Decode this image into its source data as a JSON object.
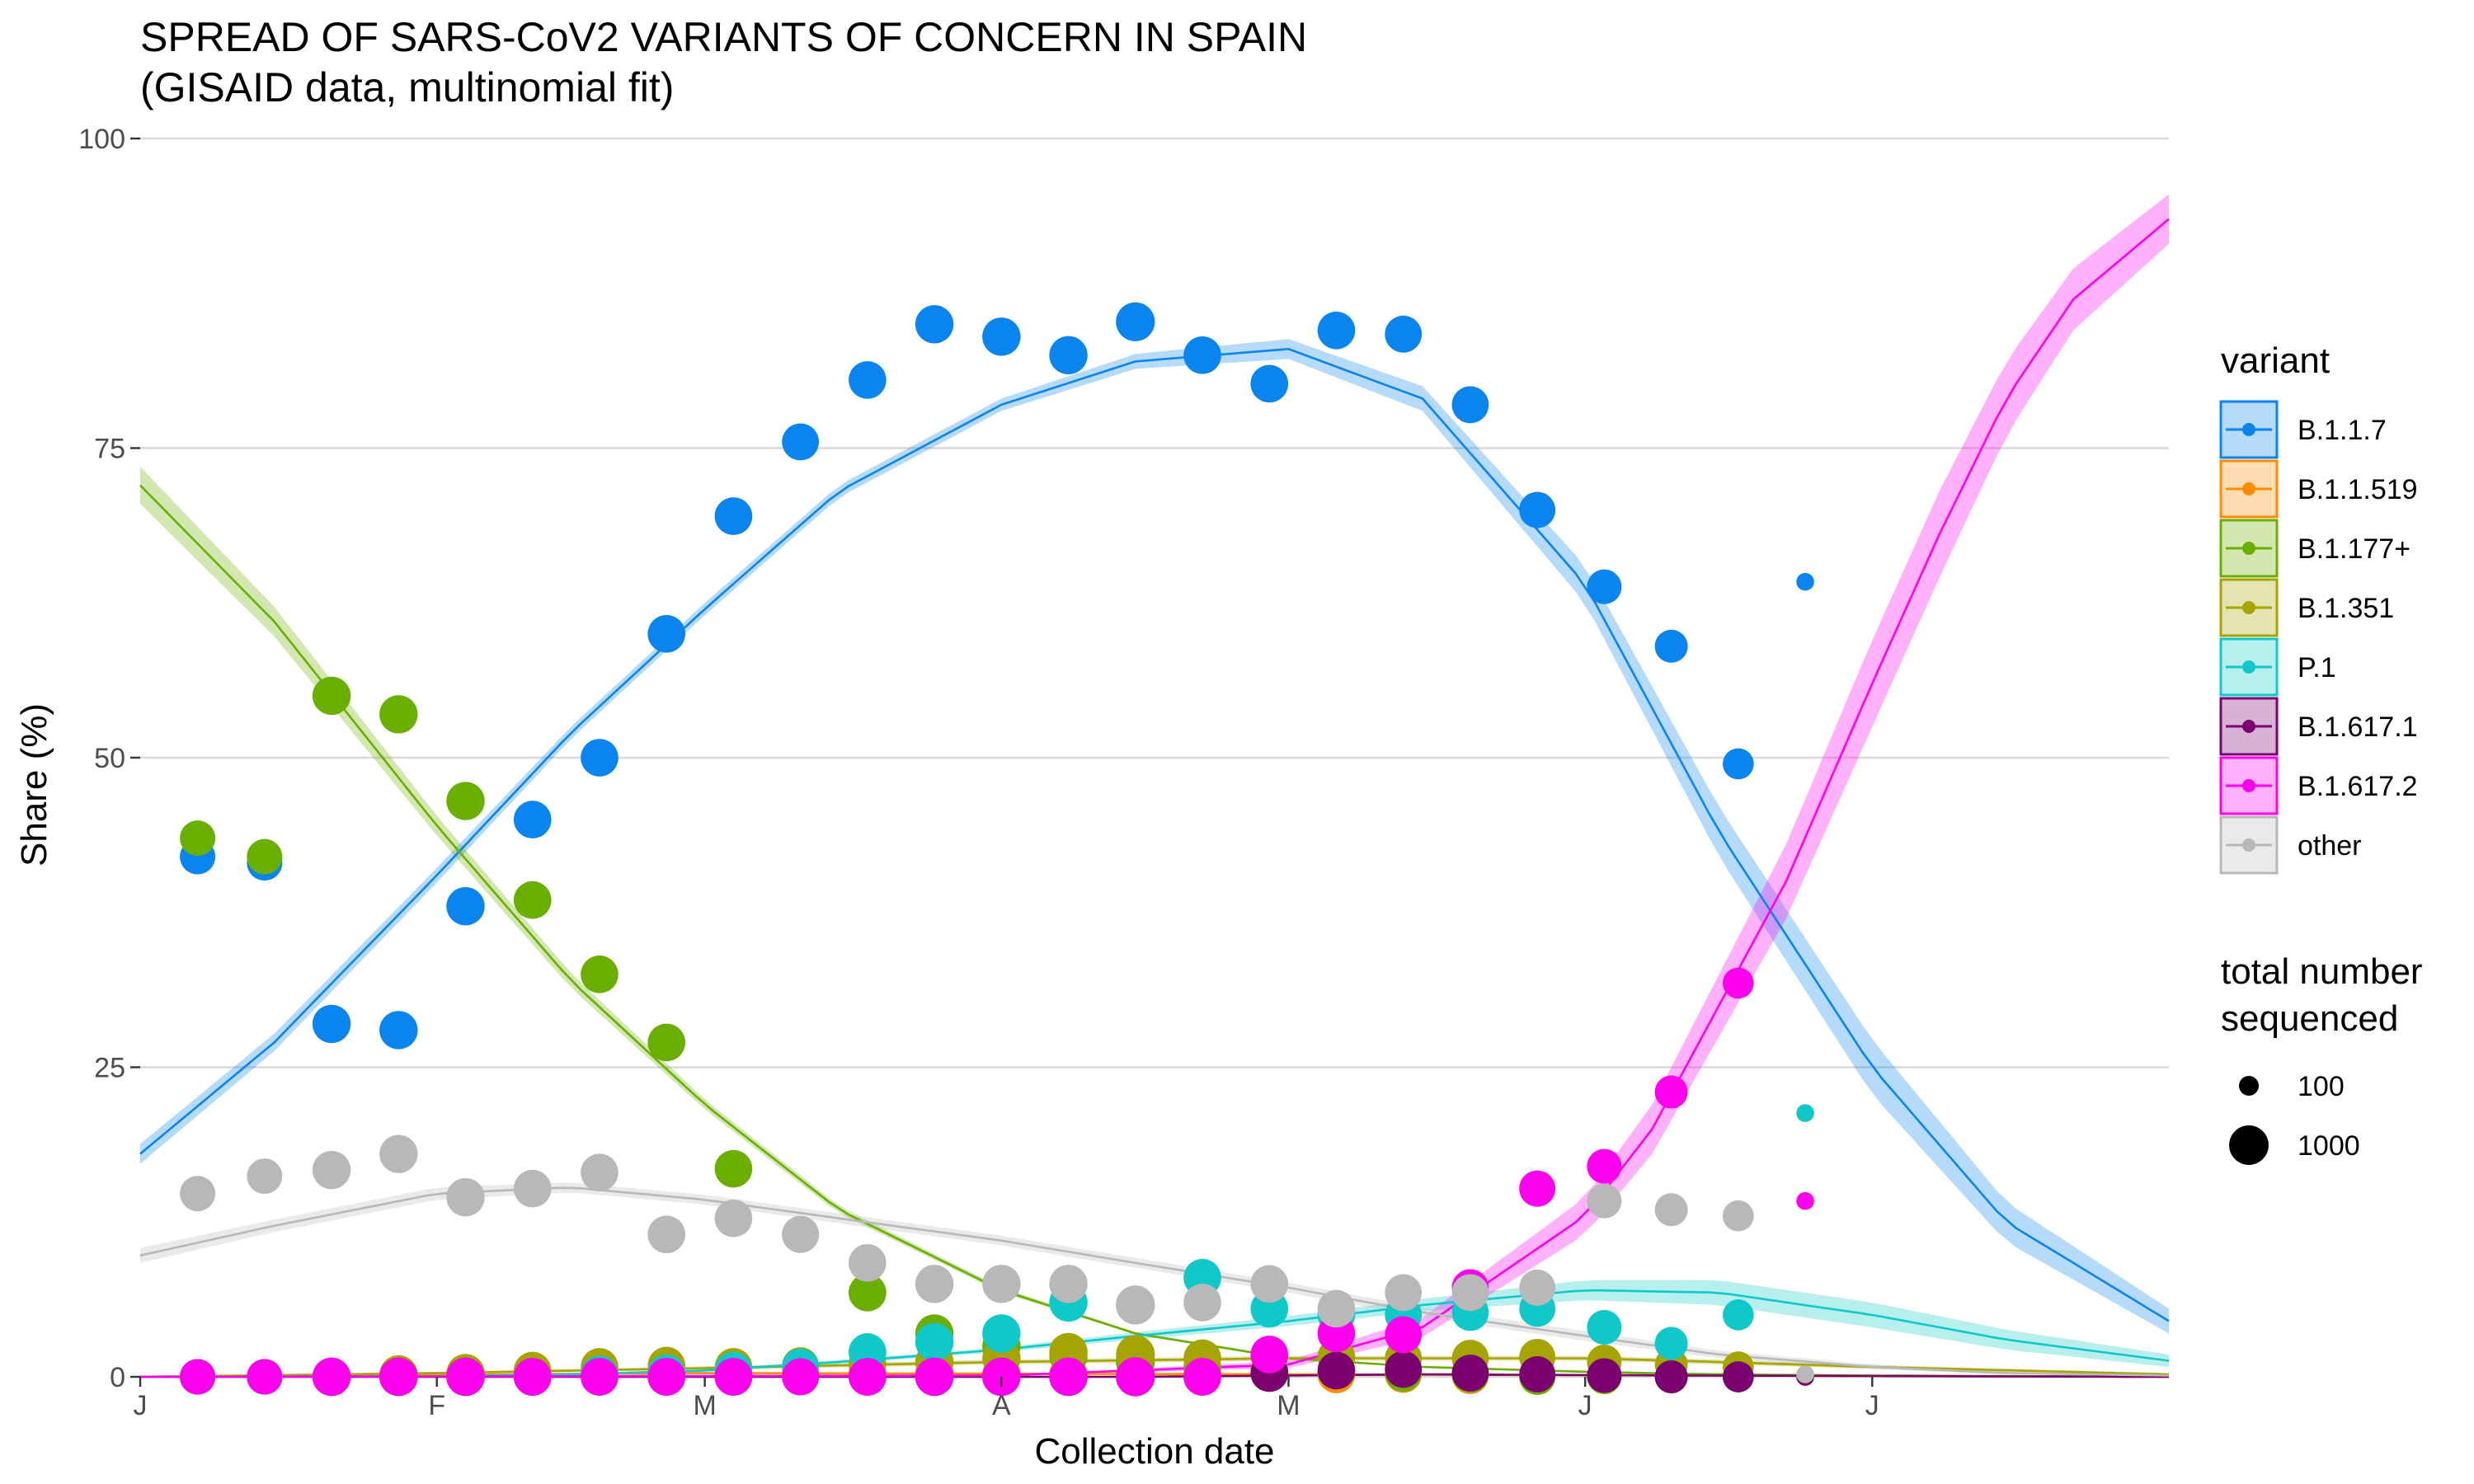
{
  "chart_data": {
    "type": "scatter",
    "title": "SPREAD OF SARS-CoV2 VARIANTS OF CONCERN IN SPAIN",
    "subtitle": "(GISAID data, multinomial fit)",
    "xlabel": "Collection date",
    "ylabel": "Share (%)",
    "x_ticks": [
      {
        "label": "J",
        "date": "2021-01-01"
      },
      {
        "label": "F",
        "date": "2021-02-01"
      },
      {
        "label": "M",
        "date": "2021-03-01"
      },
      {
        "label": "A",
        "date": "2021-04-01"
      },
      {
        "label": "M",
        "date": "2021-05-01"
      },
      {
        "label": "J",
        "date": "2021-06-01"
      },
      {
        "label": "J",
        "date": "2021-07-01"
      }
    ],
    "xlim": [
      "2021-01-01",
      "2021-08-01"
    ],
    "ylim": [
      0,
      100
    ],
    "y_ticks": [
      0,
      25,
      50,
      75,
      100
    ],
    "grid": true,
    "legend_placement": "right",
    "legend_title": "variant",
    "size_legend": {
      "title_lines": [
        "total number",
        "sequenced"
      ],
      "entries": [
        {
          "label": "100",
          "value": 100
        },
        {
          "label": "1000",
          "value": 1000
        }
      ]
    },
    "dates": [
      "2021-01-07",
      "2021-01-14",
      "2021-01-21",
      "2021-01-28",
      "2021-02-04",
      "2021-02-11",
      "2021-02-18",
      "2021-02-25",
      "2021-03-04",
      "2021-03-11",
      "2021-03-18",
      "2021-03-25",
      "2021-04-01",
      "2021-04-08",
      "2021-04-15",
      "2021-04-22",
      "2021-04-29",
      "2021-05-06",
      "2021-05-13",
      "2021-05-20",
      "2021-05-27",
      "2021-06-03",
      "2021-06-10",
      "2021-06-17",
      "2021-06-24"
    ],
    "totals": [
      700,
      700,
      900,
      900,
      900,
      850,
      850,
      850,
      850,
      800,
      850,
      900,
      900,
      900,
      950,
      850,
      850,
      850,
      800,
      800,
      750,
      650,
      550,
      450,
      70
    ],
    "series": [
      {
        "name": "B.1.1.7",
        "color": "#0a84ef",
        "points": [
          42,
          41.5,
          28.5,
          28,
          38,
          45,
          50,
          60,
          69.5,
          75.5,
          80.5,
          85,
          84,
          82.5,
          85.2,
          82.5,
          80.2,
          84.5,
          84.2,
          78.5,
          70,
          63.8,
          59,
          49.5,
          64.2
        ],
        "fit": {
          "dates": [
            "2021-01-01",
            "2021-01-15",
            "2021-02-01",
            "2021-02-15",
            "2021-03-01",
            "2021-03-15",
            "2021-04-01",
            "2021-04-15",
            "2021-05-01",
            "2021-05-15",
            "2021-06-01",
            "2021-06-15",
            "2021-07-01",
            "2021-07-15",
            "2021-08-01"
          ],
          "mid": [
            18,
            27,
            40.5,
            52,
            62,
            71.5,
            78.5,
            82,
            83,
            79,
            64,
            44,
            25,
            12.5,
            4.5
          ],
          "halfwidth": [
            0.8,
            0.7,
            0.6,
            0.5,
            0.5,
            0.5,
            0.5,
            0.6,
            0.8,
            1,
            1.5,
            2,
            2.2,
            1.6,
            1
          ]
        }
      },
      {
        "name": "B.1.1.519",
        "color": "#ff8c00",
        "points": [
          0,
          0,
          0,
          0,
          0,
          0,
          0.1,
          0.2,
          0.2,
          0.3,
          0.3,
          0.3,
          0.2,
          0.2,
          0.2,
          0.2,
          0.3,
          0.2,
          0.2,
          0.1,
          0,
          0,
          0,
          0,
          0
        ],
        "fit": {
          "dates": [
            "2021-01-01",
            "2021-03-01",
            "2021-05-01",
            "2021-08-01"
          ],
          "mid": [
            0,
            0.3,
            0.2,
            0
          ],
          "halfwidth": [
            0,
            0.1,
            0.1,
            0
          ]
        }
      },
      {
        "name": "B.1.177+",
        "color": "#6aaf00",
        "points": [
          43.5,
          42,
          55,
          53.5,
          46.5,
          38.5,
          32.5,
          27,
          16.8,
          11.5,
          6.8,
          3.5,
          2.5,
          1.7,
          1.2,
          0.8,
          0.5,
          0.5,
          0.3,
          0.2,
          0,
          0,
          0,
          0,
          0
        ],
        "fit": {
          "dates": [
            "2021-01-01",
            "2021-01-15",
            "2021-02-01",
            "2021-02-15",
            "2021-03-01",
            "2021-03-15",
            "2021-04-01",
            "2021-04-15",
            "2021-05-01",
            "2021-05-15",
            "2021-06-01",
            "2021-06-15",
            "2021-07-01",
            "2021-08-01"
          ],
          "mid": [
            72,
            61,
            44.5,
            32,
            22,
            13.5,
            7,
            3.5,
            1.5,
            0.8,
            0.4,
            0.2,
            0.1,
            0
          ],
          "halfwidth": [
            1.5,
            1.2,
            0.8,
            0.6,
            0.4,
            0.3,
            0.2,
            0.1,
            0.1,
            0.05,
            0.05,
            0,
            0,
            0
          ]
        }
      },
      {
        "name": "B.1.351",
        "color": "#a6a400",
        "points": [
          0,
          0,
          0,
          0.2,
          0.3,
          0.5,
          0.8,
          0.9,
          0.8,
          0.9,
          1,
          1.2,
          1.5,
          2,
          1.8,
          1.5,
          1.7,
          1.6,
          1.5,
          1.5,
          1.6,
          1.2,
          1,
          0.8,
          0
        ],
        "fit": {
          "dates": [
            "2021-01-01",
            "2021-02-01",
            "2021-03-01",
            "2021-04-01",
            "2021-05-01",
            "2021-06-01",
            "2021-06-15",
            "2021-07-01",
            "2021-08-01"
          ],
          "mid": [
            0,
            0.3,
            0.7,
            1.2,
            1.5,
            1.5,
            1.2,
            0.8,
            0.2
          ],
          "halfwidth": [
            0,
            0.1,
            0.15,
            0.2,
            0.2,
            0.2,
            0.2,
            0.15,
            0.1
          ]
        }
      },
      {
        "name": "P.1",
        "color": "#10c8c8",
        "points": [
          0,
          0,
          0,
          0,
          0,
          0,
          0.2,
          0.3,
          0.5,
          0.8,
          2,
          2.8,
          3.5,
          6,
          5.8,
          8,
          5.5,
          5,
          5,
          5.2,
          5.5,
          4,
          2.7,
          5,
          21.3
        ],
        "fit": {
          "dates": [
            "2021-01-01",
            "2021-02-01",
            "2021-02-15",
            "2021-03-01",
            "2021-03-15",
            "2021-04-01",
            "2021-04-15",
            "2021-05-01",
            "2021-05-15",
            "2021-06-01",
            "2021-06-15",
            "2021-07-01",
            "2021-07-15",
            "2021-08-01"
          ],
          "mid": [
            0,
            0.05,
            0.2,
            0.5,
            1.2,
            2.2,
            3.3,
            4.5,
            5.8,
            7,
            6.8,
            5,
            3,
            1.3
          ],
          "halfwidth": [
            0,
            0,
            0.05,
            0.1,
            0.15,
            0.2,
            0.3,
            0.4,
            0.5,
            0.8,
            1,
            1,
            0.8,
            0.5
          ]
        }
      },
      {
        "name": "B.1.617.1",
        "color": "#7b0070",
        "points": [
          0,
          0,
          0,
          0,
          0,
          0,
          0,
          0,
          0,
          0,
          0,
          0,
          0,
          0,
          0,
          0,
          0.3,
          0.5,
          0.6,
          0.3,
          0.2,
          0.1,
          0,
          0,
          0
        ],
        "fit": {
          "dates": [
            "2021-01-01",
            "2021-04-15",
            "2021-05-15",
            "2021-06-15",
            "2021-08-01"
          ],
          "mid": [
            0,
            0,
            0.2,
            0.1,
            0
          ],
          "halfwidth": [
            0,
            0,
            0.05,
            0.05,
            0
          ]
        }
      },
      {
        "name": "B.1.617.2",
        "color": "#ff00ee",
        "points": [
          0,
          0,
          0,
          0,
          0,
          0,
          0,
          0,
          0,
          0,
          0,
          0,
          0,
          0,
          0,
          0,
          1.8,
          3.5,
          3.4,
          7.2,
          15.2,
          17,
          23,
          31.8,
          14.2
        ],
        "fit": {
          "dates": [
            "2021-01-01",
            "2021-04-01",
            "2021-05-01",
            "2021-05-15",
            "2021-06-01",
            "2021-06-08",
            "2021-06-15",
            "2021-06-22",
            "2021-07-01",
            "2021-07-08",
            "2021-07-15",
            "2021-07-22",
            "2021-08-01"
          ],
          "mid": [
            0,
            0.1,
            1,
            4,
            13,
            20,
            30,
            40,
            56,
            68,
            79,
            87,
            93.5
          ],
          "halfwidth": [
            0,
            0,
            0.3,
            0.8,
            1.5,
            2,
            2.5,
            3,
            3.5,
            3.5,
            3,
            2.5,
            2
          ]
        }
      },
      {
        "name": "other",
        "color": "#b8b8b8",
        "points": [
          14.8,
          16.2,
          16.7,
          18,
          14.5,
          15.2,
          16.5,
          11.5,
          12.8,
          11.5,
          9.2,
          7.5,
          7.5,
          7.5,
          5.8,
          6,
          7.5,
          5.5,
          6.8,
          6.8,
          7.2,
          14.2,
          13.5,
          13,
          0.2
        ],
        "fit": {
          "dates": [
            "2021-01-01",
            "2021-01-15",
            "2021-02-01",
            "2021-02-15",
            "2021-03-01",
            "2021-03-15",
            "2021-04-01",
            "2021-04-15",
            "2021-05-01",
            "2021-05-15",
            "2021-06-01",
            "2021-06-15",
            "2021-07-01",
            "2021-07-15",
            "2021-08-01"
          ],
          "mid": [
            9.8,
            12.2,
            14.8,
            15.3,
            14.3,
            12.8,
            11,
            9.2,
            7.2,
            5.2,
            3.3,
            1.8,
            0.8,
            0.3,
            0.1
          ],
          "halfwidth": [
            0.6,
            0.5,
            0.5,
            0.4,
            0.4,
            0.4,
            0.4,
            0.4,
            0.4,
            0.4,
            0.4,
            0.3,
            0.2,
            0.1,
            0.05
          ]
        }
      }
    ]
  }
}
